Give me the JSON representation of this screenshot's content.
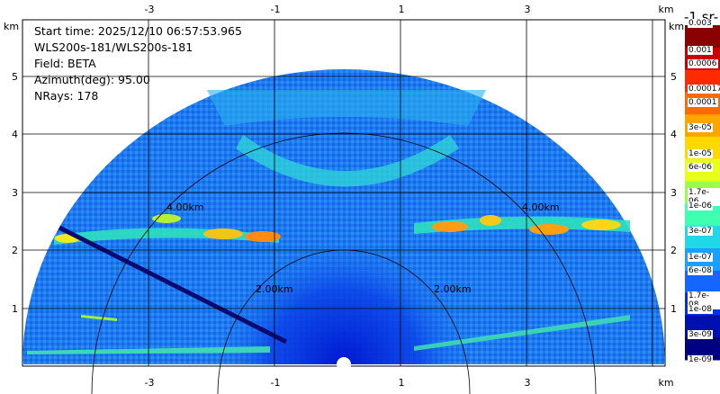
{
  "info": {
    "start_time": "Start time: 2025/12/10 06:57:53.965",
    "station": "WLS200s-181/WLS200s-181",
    "field": "Field: BETA",
    "azimuth": "Azimuth(deg): 95.00",
    "nrays": "NRays: 178"
  },
  "axes": {
    "x_ticks": [
      "-3",
      "-1",
      "1",
      "3"
    ],
    "y_ticks": [
      "1",
      "2",
      "3",
      "4",
      "5"
    ],
    "unit": "km",
    "range_rings": [
      "2.00km",
      "4.00km"
    ]
  },
  "colorbar": {
    "title": "-1 sr-",
    "top_label": "0.003",
    "labels": [
      "0.001",
      "0.0006",
      "0.00017",
      "0.0001",
      "3e-05",
      "1e-05",
      "6e-06",
      "1.7e-06",
      "1e-06",
      "3e-07",
      "1e-07",
      "6e-08",
      "1.7e-08",
      "1e-08",
      "3e-09",
      "1e-09"
    ],
    "colors": [
      "#8b0000",
      "#c80000",
      "#ff2a00",
      "#ff6a00",
      "#ffa500",
      "#ffd800",
      "#e8ff1a",
      "#9aff4a",
      "#3fffb0",
      "#20d8e8",
      "#1aa0ff",
      "#1466ff",
      "#0033e0",
      "#0010b0",
      "#000080"
    ]
  }
}
